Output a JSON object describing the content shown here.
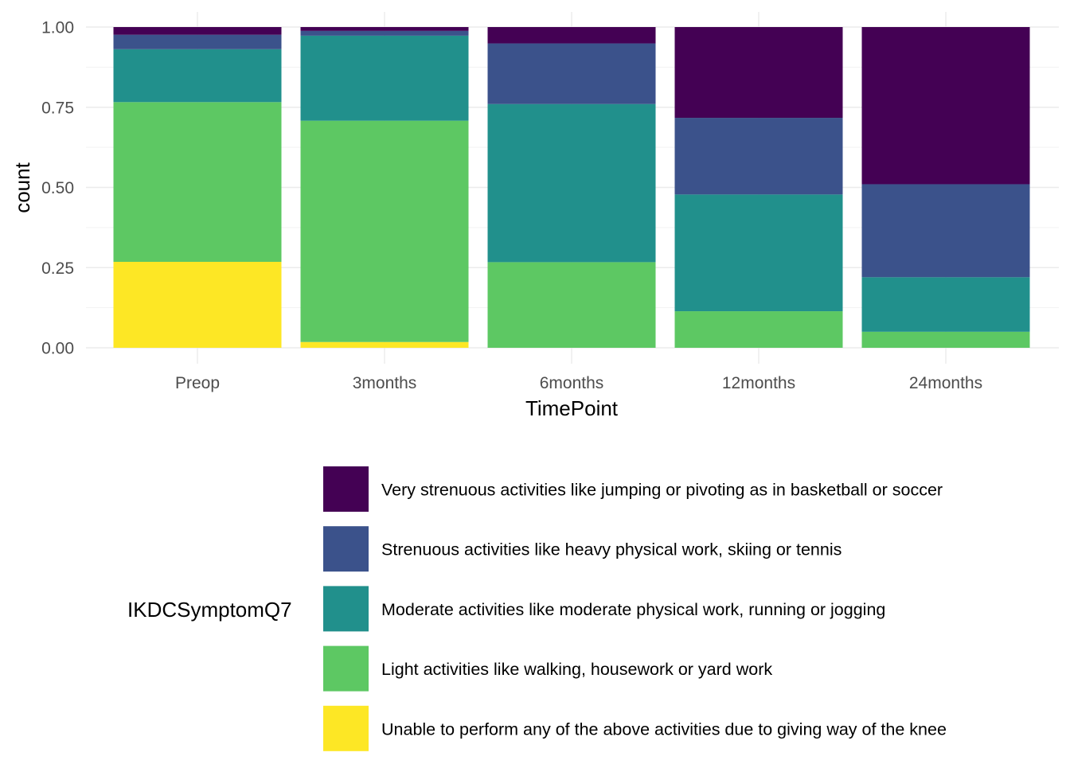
{
  "chart_data": {
    "type": "bar",
    "stacked": "fill",
    "xlabel": "TimePoint",
    "ylabel": "count",
    "ylim": [
      0,
      1
    ],
    "yticks": [
      "0.00",
      "0.25",
      "0.50",
      "0.75",
      "1.00"
    ],
    "grid": true,
    "legend": {
      "title": "IKDCSymptomQ7",
      "position": "bottom"
    },
    "categories": [
      "Preop",
      "3months",
      "6months",
      "12months",
      "24months"
    ],
    "series": [
      {
        "name": "Very strenuous activities like jumping or pivoting as in basketball or soccer",
        "color": "#440154",
        "values": [
          0.024,
          0.012,
          0.051,
          0.283,
          0.49
        ]
      },
      {
        "name": "Strenuous activities like heavy physical work, skiing or tennis",
        "color": "#3B528B",
        "values": [
          0.045,
          0.015,
          0.189,
          0.239,
          0.29
        ]
      },
      {
        "name": "Moderate activities like moderate physical work, running or jogging",
        "color": "#21908C",
        "values": [
          0.165,
          0.265,
          0.493,
          0.364,
          0.17
        ]
      },
      {
        "name": "Light activities like walking, housework or yard work",
        "color": "#5DC863",
        "values": [
          0.498,
          0.69,
          0.267,
          0.114,
          0.05
        ]
      },
      {
        "name": "Unable to perform any of the above activities due to giving way of the knee",
        "color": "#FDE725",
        "values": [
          0.268,
          0.018,
          0.0,
          0.0,
          0.0
        ]
      }
    ]
  }
}
